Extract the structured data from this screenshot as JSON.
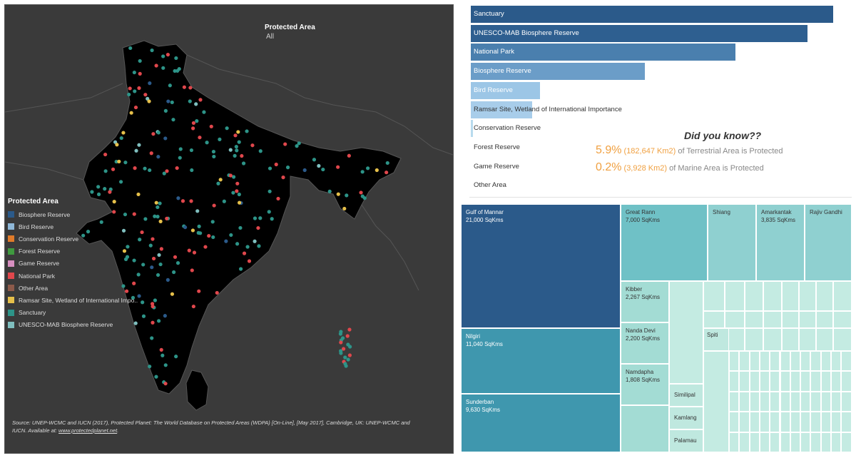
{
  "map": {
    "filter_title": "Protected Area",
    "filter_value": "All",
    "background_color": "#3a3a3a",
    "land_color": "#000000",
    "legend": {
      "title": "Protected Area",
      "items": [
        {
          "label": "Biosphere Reserve",
          "color": "#2b5a8a"
        },
        {
          "label": "Bird Reserve",
          "color": "#8fb8d8"
        },
        {
          "label": "Conservation Reserve",
          "color": "#e07b2a"
        },
        {
          "label": "Forest Reserve",
          "color": "#3f9a3f"
        },
        {
          "label": "Game Reserve",
          "color": "#d78fc0"
        },
        {
          "label": "National Park",
          "color": "#e0474c"
        },
        {
          "label": "Other Area",
          "color": "#8c5a4a"
        },
        {
          "label": "Ramsar Site, Wetland of International Impo..",
          "color": "#e6c04a"
        },
        {
          "label": "Sanctuary",
          "color": "#2d9488"
        },
        {
          "label": "UNESCO-MAB Biosphere Reserve",
          "color": "#7fbfbf"
        }
      ]
    },
    "source_text": "Source: UNEP-WCMC and IUCN (2017), Protected Planet: The World Database on Protected Areas (WDPA) [On-Line], [May 2017], Cambridge, UK: UNEP-WCMC and IUCN.  Available at: ",
    "source_link": "www.protectedplanet.net",
    "source_end": "."
  },
  "chart_data": [
    {
      "type": "bar",
      "orientation": "horizontal",
      "categories": [
        "Sanctuary",
        "UNESCO-MAB Biosphere Reserve",
        "National Park",
        "Biosphere Reserve",
        "Bird Reserve",
        "Ramsar Site, Wetland of International Importance",
        "Conservation Reserve",
        "Forest Reserve",
        "Game Reserve",
        "Other Area"
      ],
      "values": [
        100,
        93,
        73,
        48,
        19,
        17,
        0.5,
        0,
        0,
        0
      ],
      "colors": [
        "#2b5a8a",
        "#2e5f90",
        "#4a7fae",
        "#6b9dc8",
        "#9cc6e6",
        "#a8cdea",
        "#b8dbee",
        "#ffffff",
        "#ffffff",
        "#ffffff"
      ]
    },
    {
      "type": "treemap",
      "items": [
        {
          "name": "Gulf of Mannar",
          "area": "21,000 SqKms"
        },
        {
          "name": "Nilgiri",
          "area": "11,040 SqKms"
        },
        {
          "name": "Sunderban",
          "area": "9,630 SqKms"
        },
        {
          "name": "Great Rann",
          "area": "7,000 SqKms"
        },
        {
          "name": "Shiang",
          "area": ""
        },
        {
          "name": "Amarkantak",
          "area": "3,835 SqKms"
        },
        {
          "name": "Rajiv Gandhi",
          "area": ""
        },
        {
          "name": "Kibber",
          "area": "2,267 SqKms"
        },
        {
          "name": "Nanda Devi",
          "area": "2,200 SqKms"
        },
        {
          "name": "Namdapha",
          "area": "1,808 SqKms"
        },
        {
          "name": "Spiti",
          "area": ""
        },
        {
          "name": "Similipal",
          "area": ""
        },
        {
          "name": "Kamlang",
          "area": ""
        },
        {
          "name": "Palamau",
          "area": ""
        }
      ]
    }
  ],
  "did_you_know": {
    "title": "Did you know??",
    "terrestrial_pct": "5.9%",
    "terrestrial_area": "(182,647 Km2)",
    "terrestrial_text": " of Terrestrial Area is Protected",
    "marine_pct": "0.2%",
    "marine_area": "(3,928 Km2)",
    "marine_text": " of Marine Area is Protected"
  }
}
